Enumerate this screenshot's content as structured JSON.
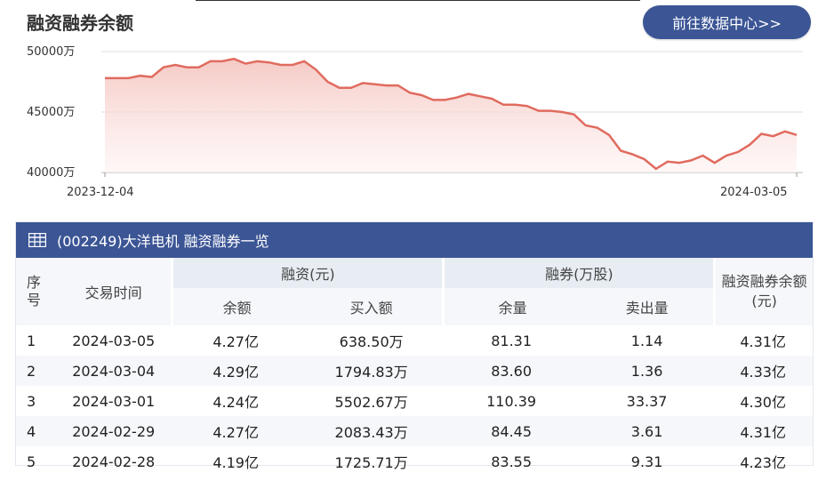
{
  "header": {
    "title": "融资融券余额",
    "goto_button": "前往数据中心>>"
  },
  "chart_data": {
    "type": "area",
    "title": "",
    "xlabel": "",
    "ylabel": "",
    "yticks": [
      "50000万",
      "45000万",
      "40000万"
    ],
    "ytick_values": [
      50000,
      45000,
      40000
    ],
    "xticks": [
      "2023-12-04",
      "2024-03-05"
    ],
    "ylim": [
      40000,
      50000
    ],
    "grid": true,
    "unit": "万",
    "colors": {
      "line": "#e06b5f",
      "fill_top": "#f5c7c2",
      "fill_bottom": "#fdf3f2"
    },
    "values": [
      47800,
      47800,
      47800,
      48000,
      47900,
      48700,
      48900,
      48700,
      48700,
      49200,
      49200,
      49400,
      49000,
      49200,
      49100,
      48900,
      48900,
      49200,
      48500,
      47500,
      47000,
      47000,
      47400,
      47300,
      47200,
      47200,
      46600,
      46400,
      46000,
      46000,
      46200,
      46500,
      46300,
      46100,
      45600,
      45600,
      45500,
      45100,
      45100,
      45000,
      44800,
      43900,
      43700,
      43100,
      41800,
      41500,
      41100,
      40300,
      40900,
      40800,
      41000,
      41400,
      40800,
      41400,
      41700,
      42300,
      43200,
      43000,
      43400,
      43100
    ]
  },
  "table": {
    "title": "(002249)大洋电机 融资融券一览",
    "icon": "table-grid-icon",
    "headers": {
      "seq": "序号",
      "date": "交易时间",
      "financing": "融资(元)",
      "securities": "融券(万股)",
      "total": "融资融券余额(元)",
      "fin_balance": "余额",
      "fin_buy": "买入额",
      "sec_balance": "余量",
      "sec_sell": "卖出量"
    },
    "rows": [
      {
        "seq": "1",
        "date": "2024-03-05",
        "fin_balance": "4.27亿",
        "fin_buy": "638.50万",
        "sec_balance": "81.31",
        "sec_sell": "1.14",
        "total": "4.31亿"
      },
      {
        "seq": "2",
        "date": "2024-03-04",
        "fin_balance": "4.29亿",
        "fin_buy": "1794.83万",
        "sec_balance": "83.60",
        "sec_sell": "1.36",
        "total": "4.33亿"
      },
      {
        "seq": "3",
        "date": "2024-03-01",
        "fin_balance": "4.24亿",
        "fin_buy": "5502.67万",
        "sec_balance": "110.39",
        "sec_sell": "33.37",
        "total": "4.30亿"
      },
      {
        "seq": "4",
        "date": "2024-02-29",
        "fin_balance": "4.27亿",
        "fin_buy": "2083.43万",
        "sec_balance": "84.45",
        "sec_sell": "3.61",
        "total": "4.31亿"
      },
      {
        "seq": "5",
        "date": "2024-02-28",
        "fin_balance": "4.19亿",
        "fin_buy": "1725.71万",
        "sec_balance": "83.55",
        "sec_sell": "9.31",
        "total": "4.23亿"
      }
    ]
  }
}
